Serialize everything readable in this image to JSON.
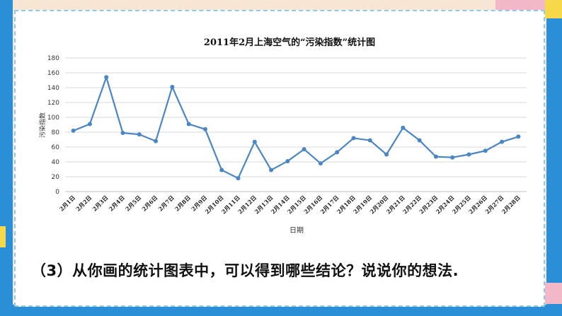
{
  "chart_data": {
    "type": "line",
    "title": "2011年2月上海空气的“污染指数”统计图",
    "xlabel": "日期",
    "ylabel": "污染指数",
    "ylim": [
      0,
      180
    ],
    "yticks": [
      0,
      20,
      40,
      60,
      80,
      100,
      120,
      140,
      160,
      180
    ],
    "grid": true,
    "line_color": "#4a86c5",
    "categories": [
      "2月1日",
      "2月2日",
      "2月3日",
      "2月4日",
      "2月5日",
      "2月6日",
      "2月7日",
      "2月8日",
      "2月9日",
      "2月10日",
      "2月11日",
      "2月12日",
      "2月13日",
      "2月14日",
      "2月15日",
      "2月16日",
      "2月17日",
      "2月18日",
      "2月19日",
      "2月20日",
      "2月21日",
      "2月22日",
      "2月23日",
      "2月24日",
      "2月25日",
      "2月26日",
      "2月27日",
      "2月28日"
    ],
    "values": [
      82,
      91,
      154,
      79,
      77,
      68,
      141,
      91,
      84,
      29,
      18,
      67,
      29,
      41,
      57,
      38,
      53,
      72,
      69,
      50,
      86,
      69,
      47,
      46,
      50,
      55,
      67,
      74
    ]
  },
  "question": {
    "text": "（3）从你画的统计图表中，可以得到哪些结论？说说你的想法."
  }
}
